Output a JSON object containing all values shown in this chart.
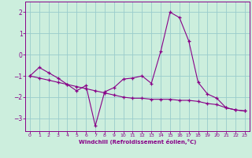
{
  "xlabel": "Windchill (Refroidissement éolien,°C)",
  "bg_color": "#cceedd",
  "line_color": "#880088",
  "grid_color": "#99cccc",
  "xlim": [
    -0.5,
    23.5
  ],
  "ylim": [
    -3.6,
    2.5
  ],
  "xticks": [
    0,
    1,
    2,
    3,
    4,
    5,
    6,
    7,
    8,
    9,
    10,
    11,
    12,
    13,
    14,
    15,
    16,
    17,
    18,
    19,
    20,
    21,
    22,
    23
  ],
  "yticks": [
    -3,
    -2,
    -1,
    0,
    1,
    2
  ],
  "series1_x": [
    0,
    1,
    2,
    3,
    4,
    5,
    6,
    7,
    8,
    9,
    10,
    11,
    12,
    13,
    14,
    15,
    16,
    17,
    18,
    19,
    20,
    21,
    22,
    23
  ],
  "series1_y": [
    -1.0,
    -0.6,
    -0.85,
    -1.1,
    -1.4,
    -1.7,
    -1.45,
    -3.35,
    -1.75,
    -1.55,
    -1.15,
    -1.1,
    -1.0,
    -1.35,
    0.15,
    2.0,
    1.75,
    0.65,
    -1.3,
    -1.85,
    -2.05,
    -2.5,
    -2.6,
    -2.65
  ],
  "series2_x": [
    0,
    1,
    2,
    3,
    4,
    5,
    6,
    7,
    8,
    9,
    10,
    11,
    12,
    13,
    14,
    15,
    16,
    17,
    18,
    19,
    20,
    21,
    22,
    23
  ],
  "series2_y": [
    -1.0,
    -1.1,
    -1.2,
    -1.3,
    -1.4,
    -1.5,
    -1.6,
    -1.7,
    -1.8,
    -1.9,
    -2.0,
    -2.05,
    -2.05,
    -2.1,
    -2.1,
    -2.1,
    -2.15,
    -2.15,
    -2.2,
    -2.3,
    -2.35,
    -2.5,
    -2.6,
    -2.65
  ]
}
